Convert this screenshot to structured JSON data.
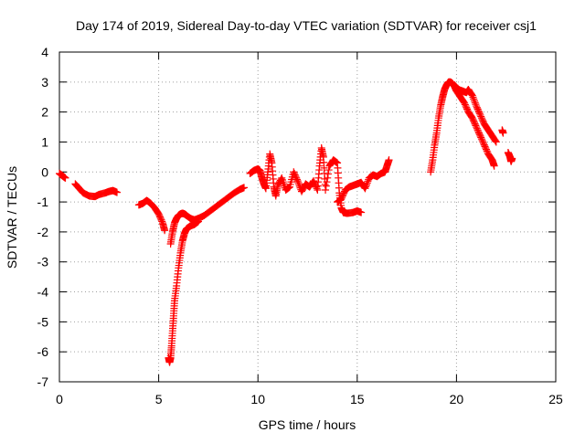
{
  "chart_data": {
    "type": "scatter",
    "title": "Day 174 of 2019, Sidereal Day-to-day VTEC variation (SDTVAR) for receiver csj1",
    "xlabel": "GPS time / hours",
    "ylabel": "SDTVAR / TECUs",
    "xlim": [
      0,
      25
    ],
    "ylim": [
      -7,
      4
    ],
    "xticks": [
      "0",
      "5",
      "10",
      "15",
      "20",
      "25"
    ],
    "yticks": [
      "-7",
      "-6",
      "-5",
      "-4",
      "-3",
      "-2",
      "-1",
      "0",
      "1",
      "2",
      "3",
      "4"
    ],
    "grid": true,
    "marker": "+",
    "color": "#ff0000",
    "series": [
      {
        "name": "SDTVAR",
        "segments": [
          [
            [
              0.0,
              -0.05
            ],
            [
              0.1,
              -0.1
            ],
            [
              0.2,
              -0.15
            ],
            [
              0.3,
              -0.2
            ]
          ],
          [
            [
              0.8,
              -0.4
            ],
            [
              1.0,
              -0.55
            ],
            [
              1.2,
              -0.7
            ],
            [
              1.5,
              -0.8
            ],
            [
              1.8,
              -0.82
            ],
            [
              2.0,
              -0.75
            ],
            [
              2.3,
              -0.7
            ],
            [
              2.5,
              -0.65
            ],
            [
              2.7,
              -0.62
            ],
            [
              2.9,
              -0.68
            ]
          ],
          [
            [
              4.0,
              -1.1
            ],
            [
              4.2,
              -1.05
            ],
            [
              4.4,
              -0.95
            ],
            [
              4.6,
              -1.05
            ],
            [
              4.8,
              -1.2
            ],
            [
              5.0,
              -1.4
            ],
            [
              5.2,
              -1.7
            ],
            [
              5.3,
              -1.95
            ]
          ],
          [
            [
              5.5,
              -6.2
            ],
            [
              5.55,
              -6.35
            ],
            [
              5.6,
              -6.2
            ],
            [
              5.65,
              -5.8
            ],
            [
              5.7,
              -5.3
            ],
            [
              5.75,
              -4.8
            ],
            [
              5.8,
              -4.3
            ],
            [
              5.9,
              -3.8
            ],
            [
              6.0,
              -3.2
            ],
            [
              6.1,
              -2.7
            ],
            [
              6.2,
              -2.3
            ],
            [
              6.3,
              -2.05
            ],
            [
              6.4,
              -1.9
            ],
            [
              6.5,
              -1.85
            ],
            [
              6.6,
              -1.8
            ],
            [
              6.8,
              -1.75
            ],
            [
              7.0,
              -1.65
            ]
          ],
          [
            [
              5.6,
              -2.4
            ],
            [
              5.7,
              -2.0
            ],
            [
              5.8,
              -1.7
            ],
            [
              5.9,
              -1.55
            ],
            [
              6.0,
              -1.45
            ],
            [
              6.1,
              -1.4
            ],
            [
              6.2,
              -1.38
            ],
            [
              6.3,
              -1.4
            ],
            [
              6.4,
              -1.45
            ],
            [
              6.6,
              -1.55
            ],
            [
              6.8,
              -1.6
            ],
            [
              7.0,
              -1.55
            ],
            [
              7.3,
              -1.45
            ],
            [
              7.6,
              -1.3
            ],
            [
              7.9,
              -1.15
            ],
            [
              8.2,
              -1.0
            ],
            [
              8.5,
              -0.85
            ],
            [
              8.8,
              -0.7
            ],
            [
              9.1,
              -0.58
            ],
            [
              9.3,
              -0.52
            ]
          ],
          [
            [
              9.6,
              -0.05
            ],
            [
              9.8,
              0.05
            ],
            [
              10.0,
              0.1
            ],
            [
              10.1,
              0.05
            ],
            [
              10.2,
              -0.2
            ],
            [
              10.3,
              -0.4
            ],
            [
              10.4,
              -0.55
            ],
            [
              10.5,
              0.0
            ],
            [
              10.6,
              0.6
            ],
            [
              10.7,
              0.3
            ],
            [
              10.8,
              -0.5
            ],
            [
              10.9,
              -0.8
            ],
            [
              11.0,
              -0.45
            ],
            [
              11.2,
              -0.2
            ],
            [
              11.4,
              -0.6
            ],
            [
              11.6,
              -0.5
            ],
            [
              11.8,
              0.0
            ],
            [
              12.0,
              -0.3
            ],
            [
              12.2,
              -0.65
            ],
            [
              12.4,
              -0.4
            ],
            [
              12.6,
              -0.5
            ],
            [
              12.8,
              -0.3
            ],
            [
              13.0,
              -0.6
            ],
            [
              13.1,
              0.2
            ],
            [
              13.2,
              0.8
            ],
            [
              13.3,
              0.5
            ],
            [
              13.4,
              -0.6
            ],
            [
              13.6,
              0.2
            ],
            [
              13.8,
              0.4
            ],
            [
              14.0,
              0.3
            ],
            [
              14.1,
              -0.7
            ],
            [
              14.2,
              -1.2
            ],
            [
              14.3,
              -1.35
            ],
            [
              14.5,
              -1.38
            ],
            [
              14.8,
              -1.35
            ],
            [
              15.0,
              -1.3
            ],
            [
              15.2,
              -1.35
            ]
          ],
          [
            [
              14.0,
              -1.0
            ],
            [
              14.2,
              -0.9
            ],
            [
              14.4,
              -0.6
            ],
            [
              14.6,
              -0.5
            ],
            [
              14.8,
              -0.45
            ],
            [
              15.0,
              -0.4
            ],
            [
              15.2,
              -0.35
            ],
            [
              15.4,
              -0.55
            ],
            [
              15.6,
              -0.2
            ],
            [
              15.8,
              -0.1
            ],
            [
              16.0,
              -0.15
            ],
            [
              16.2,
              -0.05
            ],
            [
              16.4,
              0.0
            ],
            [
              16.5,
              0.2
            ],
            [
              16.6,
              0.4
            ]
          ],
          [
            [
              18.7,
              0.0
            ],
            [
              18.8,
              0.4
            ],
            [
              18.9,
              0.9
            ],
            [
              19.0,
              1.3
            ],
            [
              19.1,
              1.8
            ],
            [
              19.2,
              2.2
            ],
            [
              19.3,
              2.5
            ],
            [
              19.4,
              2.75
            ],
            [
              19.5,
              2.9
            ],
            [
              19.6,
              3.0
            ],
            [
              19.7,
              3.0
            ],
            [
              19.8,
              2.95
            ],
            [
              19.9,
              2.85
            ],
            [
              20.0,
              2.7
            ],
            [
              20.2,
              2.5
            ],
            [
              20.4,
              2.3
            ],
            [
              20.6,
              2.0
            ],
            [
              20.8,
              1.8
            ],
            [
              21.0,
              1.5
            ],
            [
              21.2,
              1.2
            ],
            [
              21.4,
              0.9
            ],
            [
              21.6,
              0.6
            ],
            [
              21.8,
              0.4
            ],
            [
              21.9,
              0.2
            ]
          ],
          [
            [
              19.9,
              2.9
            ],
            [
              20.1,
              2.75
            ],
            [
              20.3,
              2.7
            ],
            [
              20.5,
              2.65
            ],
            [
              20.6,
              2.75
            ],
            [
              20.8,
              2.55
            ],
            [
              21.0,
              2.2
            ],
            [
              21.2,
              1.9
            ],
            [
              21.4,
              1.6
            ],
            [
              21.6,
              1.4
            ],
            [
              21.8,
              1.2
            ],
            [
              22.0,
              1.0
            ]
          ],
          [
            [
              22.3,
              1.4
            ],
            [
              22.35,
              1.3
            ]
          ],
          [
            [
              22.6,
              0.65
            ],
            [
              22.7,
              0.5
            ],
            [
              22.75,
              0.35
            ],
            [
              22.8,
              0.45
            ]
          ]
        ]
      }
    ]
  }
}
